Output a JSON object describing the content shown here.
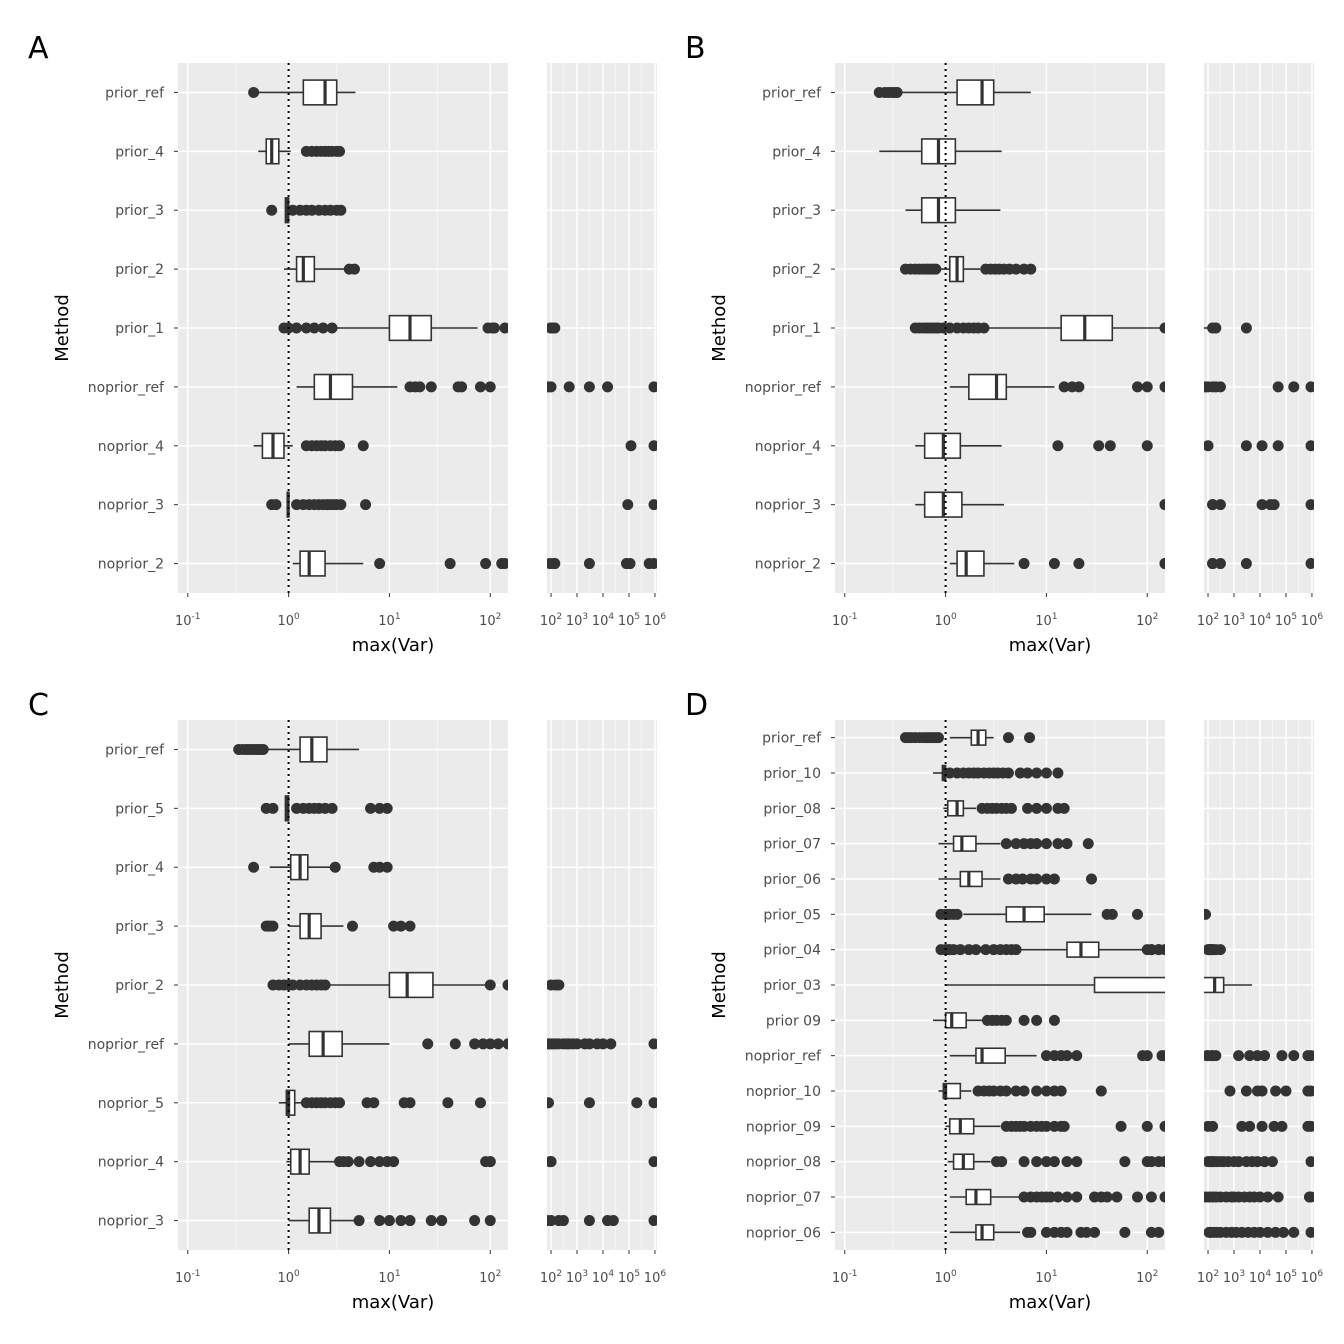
{
  "chart_data": [
    {
      "panel": "A",
      "type": "box",
      "xlabel": "max(Var)",
      "ylabel": "Method",
      "x_scale": "log10",
      "xlim_left": [
        0.08,
        150
      ],
      "xlim_right": [
        70,
        1200000
      ],
      "x_ticks_left": [
        0.1,
        1,
        10,
        100
      ],
      "x_ticks_right": [
        100,
        1000,
        10000,
        100000,
        1000000
      ],
      "reference_line_x": 1,
      "categories": [
        "prior_ref",
        "prior_4",
        "prior_3",
        "prior_2",
        "prior_1",
        "noprior_ref",
        "noprior_4",
        "noprior_3",
        "noprior_2"
      ],
      "boxes": [
        {
          "q1": 1.4,
          "median": 2.3,
          "q3": 3.0,
          "low": 0.5,
          "high": 4.6,
          "outliers": [
            0.45
          ]
        },
        {
          "q1": 0.6,
          "median": 0.68,
          "q3": 0.8,
          "low": 0.5,
          "high": 1.05,
          "outliers": [
            1.5,
            1.7,
            1.9,
            2.1,
            2.3,
            2.5,
            2.7,
            3.0,
            3.2
          ]
        },
        {
          "q1": 0.93,
          "median": 0.97,
          "q3": 1.0,
          "low": 0.93,
          "high": 1.0,
          "outliers": [
            0.68,
            1.1,
            1.3,
            1.5,
            1.7,
            2.0,
            2.3,
            2.6,
            3.0,
            3.3
          ]
        },
        {
          "q1": 1.2,
          "median": 1.4,
          "q3": 1.8,
          "low": 0.9,
          "high": 3.6,
          "outliers": [
            4.0,
            4.5
          ]
        },
        {
          "q1": 10,
          "median": 16,
          "q3": 26,
          "low": 0.95,
          "high": 75,
          "outliers": [
            0.9,
            1.0,
            1.2,
            1.5,
            1.8,
            2.2,
            2.7,
            110,
            140,
            95,
            105
          ]
        },
        {
          "q1": 1.8,
          "median": 2.6,
          "q3": 4.3,
          "low": 1.2,
          "high": 12,
          "outliers": [
            16,
            18,
            20,
            26,
            48,
            52,
            80,
            100,
            500,
            3000,
            15000,
            1000000
          ]
        },
        {
          "q1": 0.55,
          "median": 0.7,
          "q3": 0.9,
          "low": 0.45,
          "high": 1.1,
          "outliers": [
            1.5,
            1.7,
            1.9,
            2.1,
            2.3,
            2.6,
            2.9,
            3.2,
            5.5,
            120000,
            1000000
          ]
        },
        {
          "q1": 0.97,
          "median": 0.99,
          "q3": 1.0,
          "low": 0.97,
          "high": 1.0,
          "outliers": [
            0.68,
            0.75,
            1.2,
            1.4,
            1.6,
            1.8,
            2.0,
            2.2,
            2.4,
            2.6,
            2.8,
            3.0,
            3.3,
            5.8,
            90000,
            1000000
          ]
        },
        {
          "q1": 1.3,
          "median": 1.6,
          "q3": 2.3,
          "low": 1.1,
          "high": 5.5,
          "outliers": [
            8,
            40,
            140,
            90,
            130,
            3000,
            80000,
            110000,
            600000,
            1000000
          ]
        }
      ]
    },
    {
      "panel": "B",
      "type": "box",
      "xlabel": "max(Var)",
      "ylabel": "Method",
      "x_scale": "log10",
      "xlim_left": [
        0.08,
        150
      ],
      "xlim_right": [
        70,
        1200000
      ],
      "x_ticks_left": [
        0.1,
        1,
        10,
        100
      ],
      "x_ticks_right": [
        100,
        1000,
        10000,
        100000,
        1000000
      ],
      "reference_line_x": 1,
      "categories": [
        "prior_ref",
        "prior_4",
        "prior_3",
        "prior_2",
        "prior_1",
        "noprior_ref",
        "noprior_4",
        "noprior_3",
        "noprior_2"
      ],
      "boxes": [
        {
          "q1": 1.3,
          "median": 2.3,
          "q3": 3.0,
          "low": 0.35,
          "high": 7.0,
          "outliers": [
            0.22,
            0.25,
            0.27,
            0.29,
            0.31,
            0.33
          ]
        },
        {
          "q1": 0.58,
          "median": 0.85,
          "q3": 1.25,
          "low": 0.22,
          "high": 3.6,
          "outliers": []
        },
        {
          "q1": 0.58,
          "median": 0.85,
          "q3": 1.25,
          "low": 0.4,
          "high": 3.5,
          "outliers": []
        },
        {
          "q1": 1.1,
          "median": 1.3,
          "q3": 1.5,
          "low": 0.9,
          "high": 2.2,
          "outliers": [
            0.4,
            0.45,
            0.5,
            0.55,
            0.6,
            0.65,
            0.7,
            0.75,
            0.8,
            2.5,
            2.8,
            3.1,
            3.4,
            3.8,
            4.3,
            5.0,
            6.0,
            7.0
          ]
        },
        {
          "q1": 14,
          "median": 24,
          "q3": 45,
          "low": 2.7,
          "high": 150,
          "outliers": [
            0.5,
            0.55,
            0.6,
            0.65,
            0.7,
            0.75,
            0.8,
            0.85,
            0.95,
            1.1,
            1.3,
            1.5,
            1.7,
            1.9,
            2.1,
            2.4,
            150,
            200,
            3000
          ]
        },
        {
          "q1": 1.7,
          "median": 3.2,
          "q3": 4.0,
          "low": 1.1,
          "high": 12,
          "outliers": [
            15,
            18,
            21,
            80,
            100,
            150,
            200,
            300,
            50000,
            200000,
            1000000
          ]
        },
        {
          "q1": 0.62,
          "median": 0.95,
          "q3": 1.4,
          "low": 0.5,
          "high": 3.6,
          "outliers": [
            13,
            33,
            43,
            100,
            3000,
            12000,
            50000,
            1000000
          ]
        },
        {
          "q1": 0.62,
          "median": 0.95,
          "q3": 1.45,
          "low": 0.5,
          "high": 3.8,
          "outliers": [
            150,
            150,
            300,
            12000,
            25000,
            35000,
            1000000
          ]
        },
        {
          "q1": 1.3,
          "median": 1.6,
          "q3": 2.4,
          "low": 1.1,
          "high": 4.8,
          "outliers": [
            6,
            12,
            21,
            150,
            150,
            300,
            3000,
            1000000
          ]
        }
      ]
    },
    {
      "panel": "C",
      "type": "box",
      "xlabel": "max(Var)",
      "ylabel": "Method",
      "x_scale": "log10",
      "xlim_left": [
        0.08,
        150
      ],
      "xlim_right": [
        70,
        1200000
      ],
      "x_ticks_left": [
        0.1,
        1,
        10,
        100
      ],
      "x_ticks_right": [
        100,
        1000,
        10000,
        100000,
        1000000
      ],
      "reference_line_x": 1,
      "categories": [
        "prior_ref",
        "prior_5",
        "prior_4",
        "prior_3",
        "prior_2",
        "noprior_ref",
        "noprior_5",
        "noprior_4",
        "noprior_3"
      ],
      "boxes": [
        {
          "q1": 1.3,
          "median": 1.7,
          "q3": 2.4,
          "low": 0.6,
          "high": 5.0,
          "outliers": [
            0.32,
            0.35,
            0.38,
            0.41,
            0.44,
            0.47,
            0.5,
            0.53,
            0.56
          ]
        },
        {
          "q1": 0.93,
          "median": 0.97,
          "q3": 1.0,
          "low": 0.93,
          "high": 1.0,
          "outliers": [
            0.6,
            0.7,
            1.2,
            1.4,
            1.6,
            1.8,
            2.0,
            2.3,
            2.7,
            6.5,
            8,
            9.5
          ]
        },
        {
          "q1": 1.05,
          "median": 1.3,
          "q3": 1.55,
          "low": 0.65,
          "high": 2.7,
          "outliers": [
            0.45,
            2.9,
            7,
            8,
            9.5
          ]
        },
        {
          "q1": 1.3,
          "median": 1.6,
          "q3": 2.1,
          "low": 1.0,
          "high": 3.5,
          "outliers": [
            0.6,
            0.63,
            0.66,
            0.7,
            4.3,
            11,
            13,
            16
          ]
        },
        {
          "q1": 10,
          "median": 15,
          "q3": 27,
          "low": 2.5,
          "high": 100,
          "outliers": [
            0.7,
            0.8,
            0.9,
            1.0,
            1.1,
            1.3,
            1.5,
            1.7,
            1.9,
            2.1,
            2.3,
            100,
            150,
            200
          ]
        },
        {
          "q1": 1.6,
          "median": 2.2,
          "q3": 3.4,
          "low": 1.0,
          "high": 10,
          "outliers": [
            24,
            45,
            70,
            85,
            100,
            120,
            150,
            200,
            300,
            400,
            500,
            700,
            1000,
            2000,
            3000,
            6000,
            10000,
            20000,
            1000000
          ]
        },
        {
          "q1": 0.95,
          "median": 1.0,
          "q3": 1.15,
          "low": 0.8,
          "high": 1.4,
          "outliers": [
            1.5,
            1.7,
            1.9,
            2.1,
            2.3,
            2.6,
            2.9,
            3.2,
            6,
            7,
            14,
            16,
            38,
            80,
            3000,
            200000,
            1000000
          ]
        },
        {
          "q1": 1.05,
          "median": 1.3,
          "q3": 1.6,
          "low": 0.95,
          "high": 3.0,
          "outliers": [
            3.2,
            3.5,
            3.9,
            5,
            6.5,
            8,
            9.5,
            11,
            90,
            100,
            100,
            1000000
          ]
        },
        {
          "q1": 1.6,
          "median": 2.0,
          "q3": 2.6,
          "low": 1.0,
          "high": 4.5,
          "outliers": [
            5,
            8,
            10,
            13,
            16,
            26,
            33,
            70,
            100,
            200,
            300,
            3000,
            15000,
            25000,
            1000000
          ]
        }
      ]
    },
    {
      "panel": "D",
      "type": "box",
      "xlabel": "max(Var)",
      "ylabel": "Method",
      "x_scale": "log10",
      "xlim_left": [
        0.08,
        150
      ],
      "xlim_right": [
        70,
        1200000
      ],
      "x_ticks_left": [
        0.1,
        1,
        10,
        100
      ],
      "x_ticks_right": [
        100,
        1000,
        10000,
        100000,
        1000000
      ],
      "reference_line_x": 1,
      "categories": [
        "prior_ref",
        "prior_10",
        "prior_08",
        "prior_07",
        "prior_06",
        "prior_05",
        "prior_04",
        "prior_03",
        "prior 09",
        "noprior_ref",
        "noprior_10",
        "noprior_09",
        "noprior_08",
        "noprior_07",
        "noprior_06"
      ],
      "boxes": [
        {
          "q1": 1.8,
          "median": 2.1,
          "q3": 2.5,
          "low": 1.1,
          "high": 3.0,
          "outliers": [
            0.4,
            0.43,
            0.46,
            0.5,
            0.55,
            0.6,
            0.65,
            0.7,
            0.75,
            0.8,
            0.85,
            4.2,
            6.8
          ]
        },
        {
          "q1": 0.93,
          "median": 0.97,
          "q3": 1.0,
          "low": 0.75,
          "high": 1.0,
          "outliers": [
            1.1,
            1.3,
            1.5,
            1.7,
            1.9,
            2.1,
            2.4,
            2.7,
            3.0,
            3.3,
            3.7,
            4.2,
            5.5,
            6.5,
            8,
            10,
            13
          ]
        },
        {
          "q1": 1.05,
          "median": 1.3,
          "q3": 1.5,
          "low": 0.95,
          "high": 2.0,
          "outliers": [
            2.3,
            2.6,
            2.9,
            3.2,
            3.6,
            4.0,
            4.5,
            6.5,
            8,
            10,
            13,
            15
          ]
        },
        {
          "q1": 1.2,
          "median": 1.45,
          "q3": 2.0,
          "low": 0.85,
          "high": 3.5,
          "outliers": [
            4,
            5,
            6,
            7,
            8,
            10,
            13,
            16,
            26
          ]
        },
        {
          "q1": 1.4,
          "median": 1.7,
          "q3": 2.3,
          "low": 0.85,
          "high": 3.5,
          "outliers": [
            4.2,
            5,
            5.8,
            7,
            8,
            10,
            12,
            28
          ]
        },
        {
          "q1": 4.0,
          "median": 6.0,
          "q3": 9.5,
          "low": 1.5,
          "high": 28,
          "outliers": [
            0.9,
            1.0,
            1.05,
            1.1,
            1.2,
            1.3,
            40,
            45,
            80
          ]
        },
        {
          "q1": 16,
          "median": 22,
          "q3": 33,
          "low": 5.5,
          "high": 100,
          "outliers": [
            0.9,
            1.0,
            1.05,
            1.1,
            1.2,
            1.4,
            1.7,
            2.0,
            2.5,
            3.0,
            3.5,
            4.0,
            4.5,
            5.0,
            110,
            130,
            150,
            100,
            110,
            130,
            160,
            200,
            300
          ]
        },
        {
          "q1": 30,
          "median": 180,
          "q3": 400,
          "low": 1.0,
          "high": 5000,
          "outliers": []
        },
        {
          "q1": 1.0,
          "median": 1.15,
          "q3": 1.6,
          "low": 0.75,
          "high": 2.5,
          "outliers": [
            2.6,
            2.9,
            3.2,
            3.6,
            4.0,
            6,
            8,
            12
          ]
        },
        {
          "q1": 2.0,
          "median": 2.3,
          "q3": 3.9,
          "low": 1.1,
          "high": 8,
          "outliers": [
            10,
            12,
            14,
            16,
            20,
            90,
            140,
            100,
            150,
            200,
            1500,
            4000,
            8000,
            15000,
            70000,
            200000,
            700000,
            1000000
          ]
        },
        {
          "q1": 0.95,
          "median": 1.0,
          "q3": 1.4,
          "low": 0.85,
          "high": 1.8,
          "outliers": [
            2.1,
            2.4,
            2.7,
            3,
            3.5,
            4,
            5,
            6,
            8,
            10,
            12,
            14,
            35,
            700,
            3000,
            8000,
            12000,
            40000,
            100000,
            700000,
            1000000
          ]
        },
        {
          "q1": 1.1,
          "median": 1.4,
          "q3": 1.9,
          "low": 1.0,
          "high": 3.5,
          "outliers": [
            4,
            4.5,
            5,
            5.5,
            6,
            7,
            8,
            9,
            10,
            12,
            14,
            15,
            55,
            100,
            150,
            2000,
            4000,
            12000,
            35000,
            70000,
            700000,
            1000000
          ]
        },
        {
          "q1": 1.2,
          "median": 1.5,
          "q3": 1.9,
          "low": 1.05,
          "high": 2.8,
          "outliers": [
            3.2,
            3.6,
            6,
            8,
            10,
            12,
            16,
            20,
            60,
            100,
            150,
            110,
            130,
            170,
            220,
            300,
            400,
            600,
            1000,
            1500,
            3000,
            5000,
            8000,
            15000,
            30000,
            1000000
          ]
        },
        {
          "q1": 1.6,
          "median": 2.0,
          "q3": 2.8,
          "low": 1.1,
          "high": 5.5,
          "outliers": [
            6,
            7,
            8,
            9,
            10,
            11,
            13,
            16,
            20,
            30,
            35,
            40,
            50,
            80,
            110,
            150,
            200,
            300,
            500,
            800,
            1000,
            1500,
            2500,
            4000,
            6000,
            10000,
            20000,
            50000,
            800000,
            1000000
          ]
        },
        {
          "q1": 2.0,
          "median": 2.3,
          "q3": 3.0,
          "low": 1.1,
          "high": 5.5,
          "outliers": [
            6.5,
            7,
            10,
            12,
            14,
            16,
            22,
            25,
            30,
            60,
            110,
            130,
            170,
            220,
            300,
            500,
            800,
            1200,
            2000,
            3500,
            6000,
            10000,
            20000,
            40000,
            80000,
            200000,
            1000000
          ]
        }
      ]
    }
  ]
}
